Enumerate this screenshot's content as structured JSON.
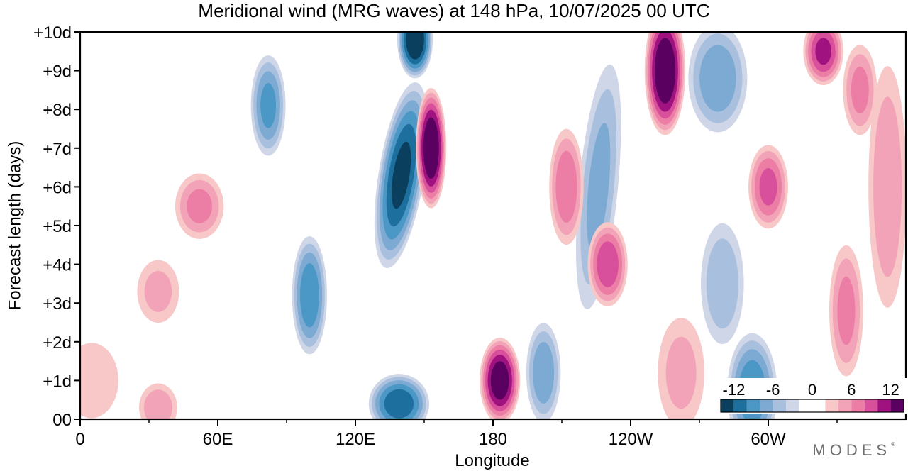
{
  "chart_data": {
    "type": "heatmap",
    "title": "Meridional wind (MRG waves) at  148 hPa,  10/07/2025  00 UTC",
    "xlabel": "Longitude",
    "ylabel": "Forecast length (days)",
    "x_ticks": [
      "0",
      "60E",
      "120E",
      "180",
      "120W",
      "60W"
    ],
    "x_tick_values": [
      0,
      60,
      120,
      180,
      240,
      300
    ],
    "x_minor_tick_values": [
      30,
      90,
      150,
      210,
      270,
      330
    ],
    "xlim": [
      0,
      360
    ],
    "y_ticks": [
      "00",
      "+1d",
      "+2d",
      "+3d",
      "+4d",
      "+5d",
      "+6d",
      "+7d",
      "+8d",
      "+9d",
      "+10d"
    ],
    "y_tick_values": [
      0,
      1,
      2,
      3,
      4,
      5,
      6,
      7,
      8,
      9,
      10
    ],
    "ylim": [
      0,
      10
    ],
    "colorbar": {
      "labels": [
        "-12",
        "-6",
        "0",
        "6",
        "12"
      ],
      "levels": [
        -14,
        -12,
        -10,
        -8,
        -6,
        -4,
        -2,
        2,
        4,
        6,
        8,
        10,
        12,
        14
      ],
      "colors": [
        "#0b3f5e",
        "#1d6f9e",
        "#4b97c6",
        "#7daad2",
        "#a8c0de",
        "#ced6e8",
        "#ffffff",
        "#f8c8c8",
        "#f3a3b7",
        "#ec7ea5",
        "#d8509b",
        "#a0127f",
        "#5a0060"
      ]
    },
    "features": [
      {
        "sign": "neg",
        "peak": -14,
        "lon": 146,
        "day": 9.8,
        "hw": 7,
        "hh": 0.9,
        "tilt": 0
      },
      {
        "sign": "neg",
        "peak": -12,
        "lon": 140,
        "day": 6.3,
        "hw": 9,
        "hh": 2.2,
        "tilt": 0.05
      },
      {
        "sign": "neg",
        "peak": -9,
        "lon": 100,
        "day": 3.2,
        "hw": 7,
        "hh": 1.4,
        "tilt": 0
      },
      {
        "sign": "neg",
        "peak": -8,
        "lon": 82,
        "day": 8.1,
        "hw": 7,
        "hh": 1.2,
        "tilt": 0
      },
      {
        "sign": "neg",
        "peak": -11,
        "lon": 139,
        "day": 0.4,
        "hw": 12,
        "hh": 0.7,
        "tilt": 0
      },
      {
        "sign": "neg",
        "peak": -7,
        "lon": 202,
        "day": 1.2,
        "hw": 7,
        "hh": 1.2,
        "tilt": 0
      },
      {
        "sign": "neg",
        "peak": -6,
        "lon": 226,
        "day": 6.0,
        "hw": 8,
        "hh": 3.0,
        "tilt": 0.03
      },
      {
        "sign": "neg",
        "peak": -9,
        "lon": 293,
        "day": 0.7,
        "hw": 10,
        "hh": 1.4,
        "tilt": 0
      },
      {
        "sign": "neg",
        "peak": -7,
        "lon": 278,
        "day": 8.8,
        "hw": 12,
        "hh": 1.3,
        "tilt": 0
      },
      {
        "sign": "neg",
        "peak": -5,
        "lon": 280,
        "day": 3.5,
        "hw": 9,
        "hh": 1.5,
        "tilt": 0
      },
      {
        "sign": "pos",
        "peak": 14,
        "lon": 153,
        "day": 7.0,
        "hw": 6,
        "hh": 1.4,
        "tilt": 0
      },
      {
        "sign": "pos",
        "peak": 13,
        "lon": 183,
        "day": 1.0,
        "hw": 8,
        "hh": 1.0,
        "tilt": 0
      },
      {
        "sign": "pos",
        "peak": 14,
        "lon": 255,
        "day": 9.0,
        "hw": 8,
        "hh": 1.5,
        "tilt": 0
      },
      {
        "sign": "pos",
        "peak": 10,
        "lon": 324,
        "day": 9.5,
        "hw": 8,
        "hh": 0.8,
        "tilt": 0
      },
      {
        "sign": "pos",
        "peak": 9,
        "lon": 230,
        "day": 4.0,
        "hw": 8,
        "hh": 1.0,
        "tilt": 0
      },
      {
        "sign": "pos",
        "peak": 8,
        "lon": 300,
        "day": 6.0,
        "hw": 8,
        "hh": 1.0,
        "tilt": 0
      },
      {
        "sign": "pos",
        "peak": 7,
        "lon": 212,
        "day": 6.0,
        "hw": 7,
        "hh": 1.4,
        "tilt": 0
      },
      {
        "sign": "pos",
        "peak": 6,
        "lon": 340,
        "day": 8.5,
        "hw": 7,
        "hh": 1.1,
        "tilt": 0
      },
      {
        "sign": "pos",
        "peak": 6,
        "lon": 334,
        "day": 2.8,
        "hw": 7,
        "hh": 1.6,
        "tilt": 0
      },
      {
        "sign": "pos",
        "peak": 6,
        "lon": 52,
        "day": 5.5,
        "hw": 10,
        "hh": 0.8,
        "tilt": 0
      },
      {
        "sign": "pos",
        "peak": 5,
        "lon": 34,
        "day": 0.3,
        "hw": 8,
        "hh": 0.6,
        "tilt": 0
      },
      {
        "sign": "pos",
        "peak": 4,
        "lon": 34,
        "day": 3.3,
        "hw": 9,
        "hh": 0.8,
        "tilt": 0
      },
      {
        "sign": "pos",
        "peak": 4,
        "lon": 262,
        "day": 1.2,
        "hw": 10,
        "hh": 1.4,
        "tilt": 0
      },
      {
        "sign": "pos",
        "peak": 5,
        "lon": 352,
        "day": 6.0,
        "hw": 8,
        "hh": 3.0,
        "tilt": 0
      },
      {
        "sign": "pos",
        "peak": 3,
        "lon": 5,
        "day": 1.0,
        "hw": 12,
        "hh": 1.0,
        "tilt": 0
      }
    ]
  },
  "watermark": "MODES"
}
